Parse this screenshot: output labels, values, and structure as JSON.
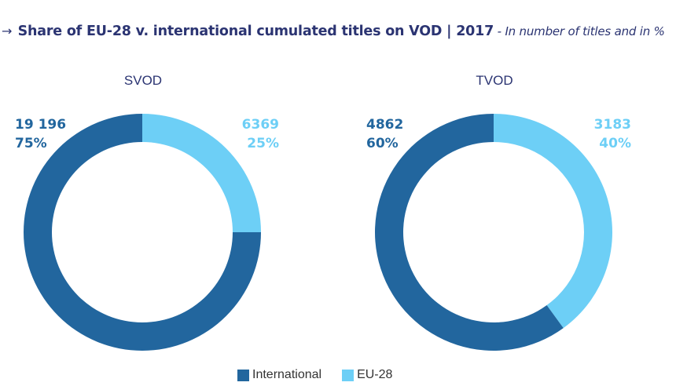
{
  "header": {
    "arrow": "→",
    "title": "Share of EU-28 v. international cumulated titles on VOD | 2017",
    "subtitle": " - In number of titles and in %"
  },
  "colors": {
    "international": "#22669e",
    "eu28": "#6dcff6",
    "title": "#2b3472"
  },
  "charts": [
    {
      "title": "SVOD",
      "international": {
        "value": "19 196",
        "percent": "75%"
      },
      "eu28": {
        "value": "6369",
        "percent": "25%"
      }
    },
    {
      "title": "TVOD",
      "international": {
        "value": "4862",
        "percent": "60%"
      },
      "eu28": {
        "value": "3183",
        "percent": "40%"
      }
    }
  ],
  "legend": {
    "items": [
      {
        "label": "International",
        "color": "#22669e"
      },
      {
        "label": "EU-28",
        "color": "#6dcff6"
      }
    ]
  },
  "chart_data": [
    {
      "type": "pie",
      "title": "SVOD",
      "categories": [
        "EU-28",
        "International"
      ],
      "values": [
        6369,
        19196
      ],
      "percentages": [
        25,
        75
      ],
      "hole": true,
      "legend_position": "bottom"
    },
    {
      "type": "pie",
      "title": "TVOD",
      "categories": [
        "EU-28",
        "International"
      ],
      "values": [
        3183,
        4862
      ],
      "percentages": [
        40,
        60
      ],
      "hole": true,
      "legend_position": "bottom"
    }
  ]
}
